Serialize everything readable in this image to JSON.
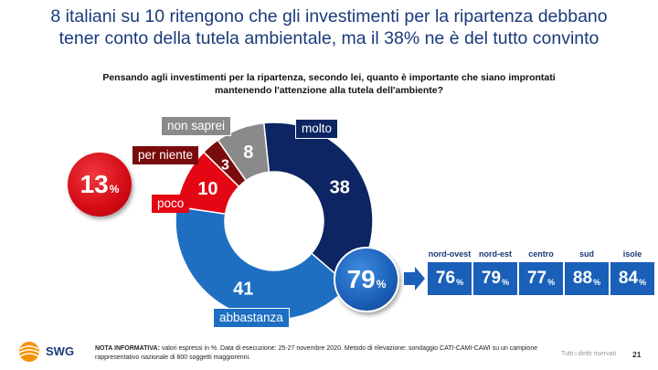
{
  "title": {
    "line1": "8 italiani su 10 ritengono che gli investimenti per la ripartenza debbano",
    "line2": "tener conto della tutela ambientale, ma il 38% ne è del tutto convinto"
  },
  "question": {
    "line1": "Pensando agli investimenti per la ripartenza, secondo lei, quanto è importante che siano improntati",
    "line2": "mantenendo l'attenzione alla tutela dell'ambiente?"
  },
  "colors": {
    "molto": "#0d2563",
    "abbastanza": "#1e6fc2",
    "poco": "#e30613",
    "per_niente": "#7a0b0b",
    "non_saprei": "#8a8a8a",
    "region_box": "#1a5fb8",
    "title": "#1a3a7a"
  },
  "chart_data": [
    {
      "type": "pie",
      "categories": [
        "molto",
        "abbastanza",
        "poco",
        "per niente",
        "non saprei"
      ],
      "values": [
        38,
        41,
        10,
        3,
        8
      ],
      "unit": "%"
    },
    {
      "type": "bar",
      "categories": [
        "nord-ovest",
        "nord-est",
        "centro",
        "sud",
        "isole"
      ],
      "values": [
        76,
        79,
        77,
        88,
        84
      ],
      "unit": "%"
    }
  ],
  "callouts": {
    "negative_total": "13",
    "positive_total": "79",
    "pct_sign": "%"
  },
  "footer": {
    "note_label": "NOTA INFORMATIVA:",
    "note_text": " valori espressi in %. Data di esecuzione: 25-27 novembre 2020. Metodo di rilevazione: sondaggio CATI-CAMI-CAWI su un campione rappresentativo nazionale di 800 soggetti maggiorenni.",
    "rights": "Tutti i diritti riservati",
    "page": "21",
    "logo": "SWG"
  }
}
